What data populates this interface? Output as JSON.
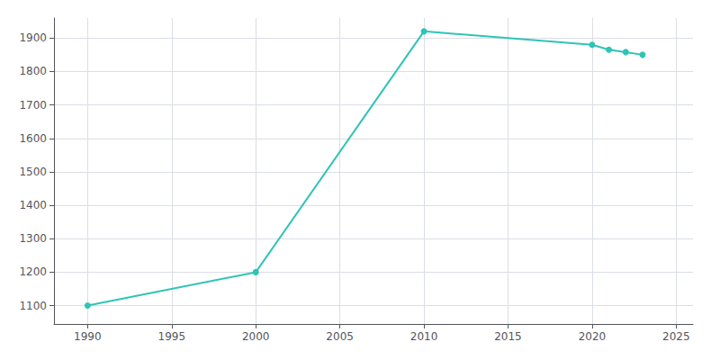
{
  "chart_data": {
    "type": "line",
    "x": [
      1990,
      2000,
      2010,
      2020,
      2021,
      2022,
      2023
    ],
    "values": [
      1100,
      1200,
      1920,
      1880,
      1865,
      1858,
      1850
    ],
    "color": "#2ec4b6",
    "marker": "circle",
    "xlim": [
      1988,
      2026
    ],
    "ylim": [
      1045,
      1960
    ],
    "xticks": [
      1990,
      1995,
      2000,
      2005,
      2010,
      2015,
      2020,
      2025
    ],
    "yticks": [
      1100,
      1200,
      1300,
      1400,
      1500,
      1600,
      1700,
      1800,
      1900
    ],
    "grid": true
  }
}
